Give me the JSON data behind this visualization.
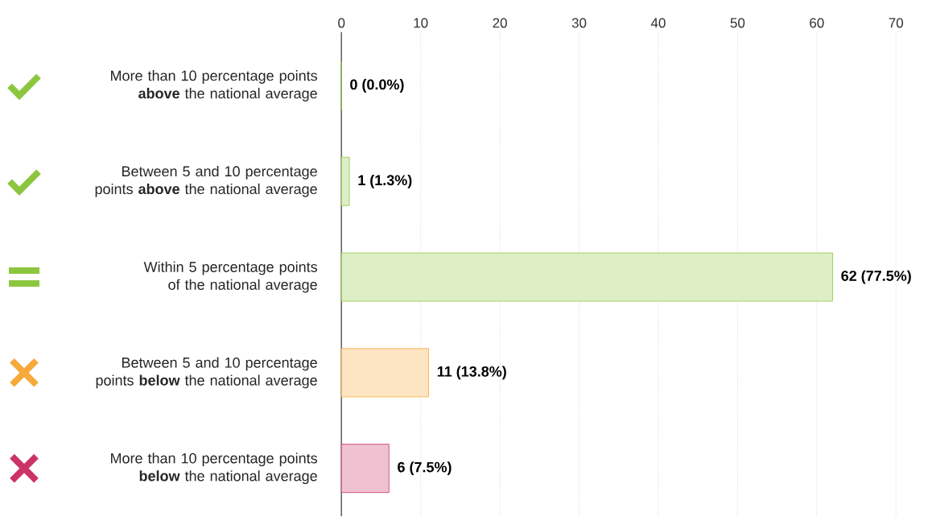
{
  "chart_data": {
    "type": "bar",
    "orientation": "horizontal",
    "categories": [
      "More than 10 percentage points **above** the national average",
      "Between 5 and 10 percentage points **above** the national average",
      "Within 5 percentage points of the national average",
      "Between 5 and 10 percentage points **below** the national average",
      "More than 10 percentage points **below** the national average"
    ],
    "values": [
      0,
      1,
      62,
      11,
      6
    ],
    "value_labels": [
      "0 (0.0%)",
      "1 (1.3%)",
      "62 (77.5%)",
      "11 (13.8%)",
      "6 (7.5%)"
    ],
    "colors": [
      "#8cc63f",
      "#8cc63f",
      "#8cc63f",
      "#f7a93b",
      "#cc3366"
    ],
    "xlim": [
      0,
      70
    ],
    "xticks": [
      0,
      10,
      20,
      30,
      40,
      50,
      60,
      70
    ],
    "grid": "x"
  }
}
